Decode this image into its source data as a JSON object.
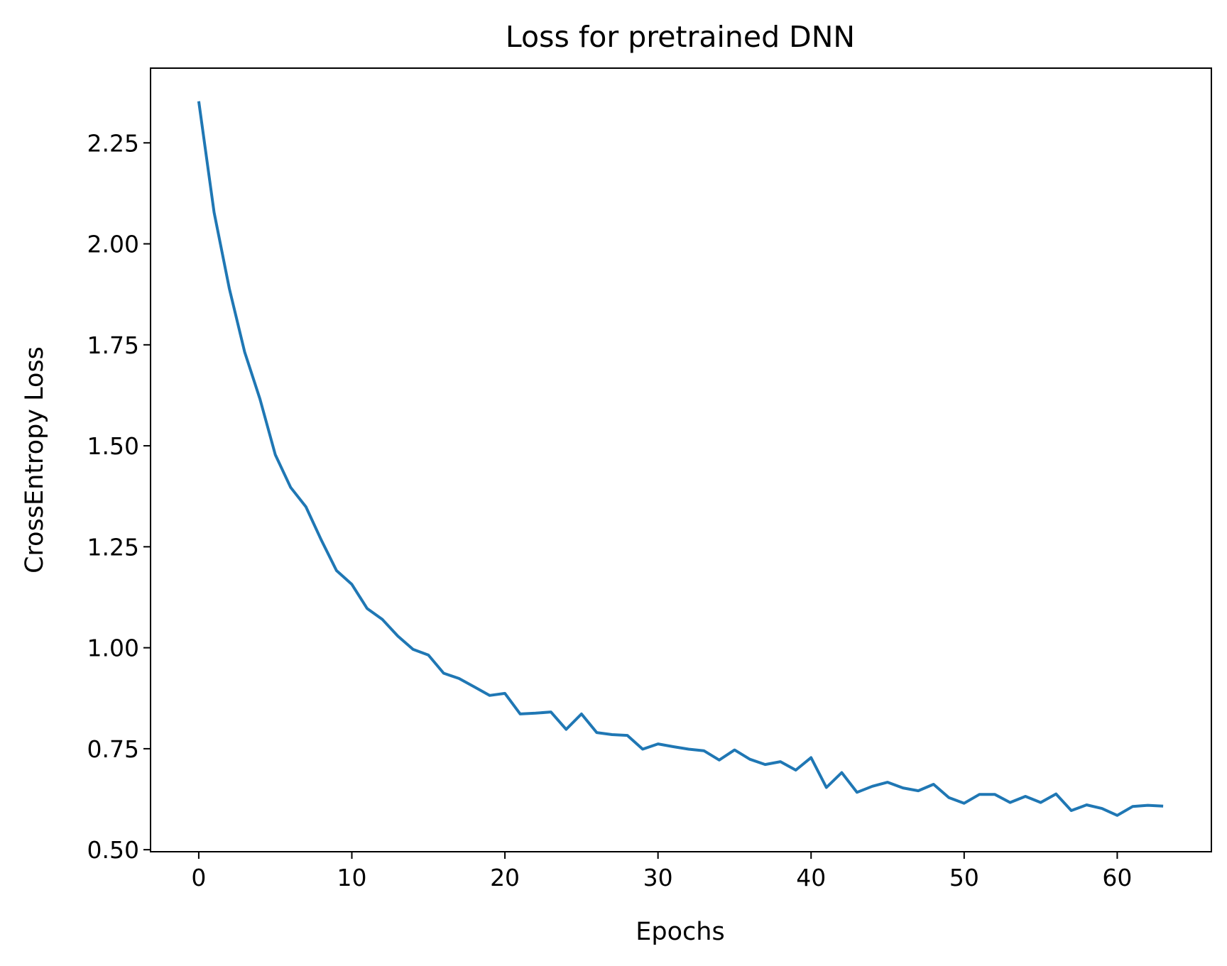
{
  "chart_data": {
    "type": "line",
    "title": "Loss for pretrained DNN",
    "xlabel": "Epochs",
    "ylabel": "CrossEntropy Loss",
    "xlim": [
      -3.15,
      66.15
    ],
    "ylim": [
      0.495,
      2.435
    ],
    "xticks": [
      0,
      10,
      20,
      30,
      40,
      50,
      60
    ],
    "xtick_labels": [
      "0",
      "10",
      "20",
      "30",
      "40",
      "50",
      "60"
    ],
    "yticks": [
      0.5,
      0.75,
      1.0,
      1.25,
      1.5,
      1.75,
      2.0,
      2.25
    ],
    "ytick_labels": [
      "0.50",
      "0.75",
      "1.00",
      "1.25",
      "1.50",
      "1.75",
      "2.00",
      "2.25"
    ],
    "grid": false,
    "series": [
      {
        "color": "#1f77b4",
        "x": [
          0,
          1,
          2,
          3,
          4,
          5,
          6,
          7,
          8,
          9,
          10,
          11,
          12,
          13,
          14,
          15,
          16,
          17,
          18,
          19,
          20,
          21,
          22,
          23,
          24,
          25,
          26,
          27,
          28,
          29,
          30,
          31,
          32,
          33,
          34,
          35,
          36,
          37,
          38,
          39,
          40,
          41,
          42,
          43,
          44,
          45,
          46,
          47,
          48,
          49,
          50,
          51,
          52,
          53,
          54,
          55,
          56,
          57,
          58,
          59,
          60,
          61,
          62,
          63
        ],
        "y": [
          2.353,
          2.078,
          1.889,
          1.732,
          1.616,
          1.478,
          1.397,
          1.349,
          1.267,
          1.191,
          1.157,
          1.097,
          1.07,
          1.029,
          0.996,
          0.982,
          0.937,
          0.924,
          0.903,
          0.882,
          0.887,
          0.836,
          0.838,
          0.841,
          0.798,
          0.836,
          0.79,
          0.785,
          0.783,
          0.749,
          0.762,
          0.755,
          0.749,
          0.745,
          0.722,
          0.747,
          0.724,
          0.711,
          0.718,
          0.697,
          0.728,
          0.654,
          0.691,
          0.642,
          0.657,
          0.667,
          0.653,
          0.646,
          0.662,
          0.629,
          0.615,
          0.637,
          0.637,
          0.617,
          0.632,
          0.617,
          0.638,
          0.597,
          0.611,
          0.602,
          0.585,
          0.607,
          0.61,
          0.608
        ]
      }
    ]
  }
}
